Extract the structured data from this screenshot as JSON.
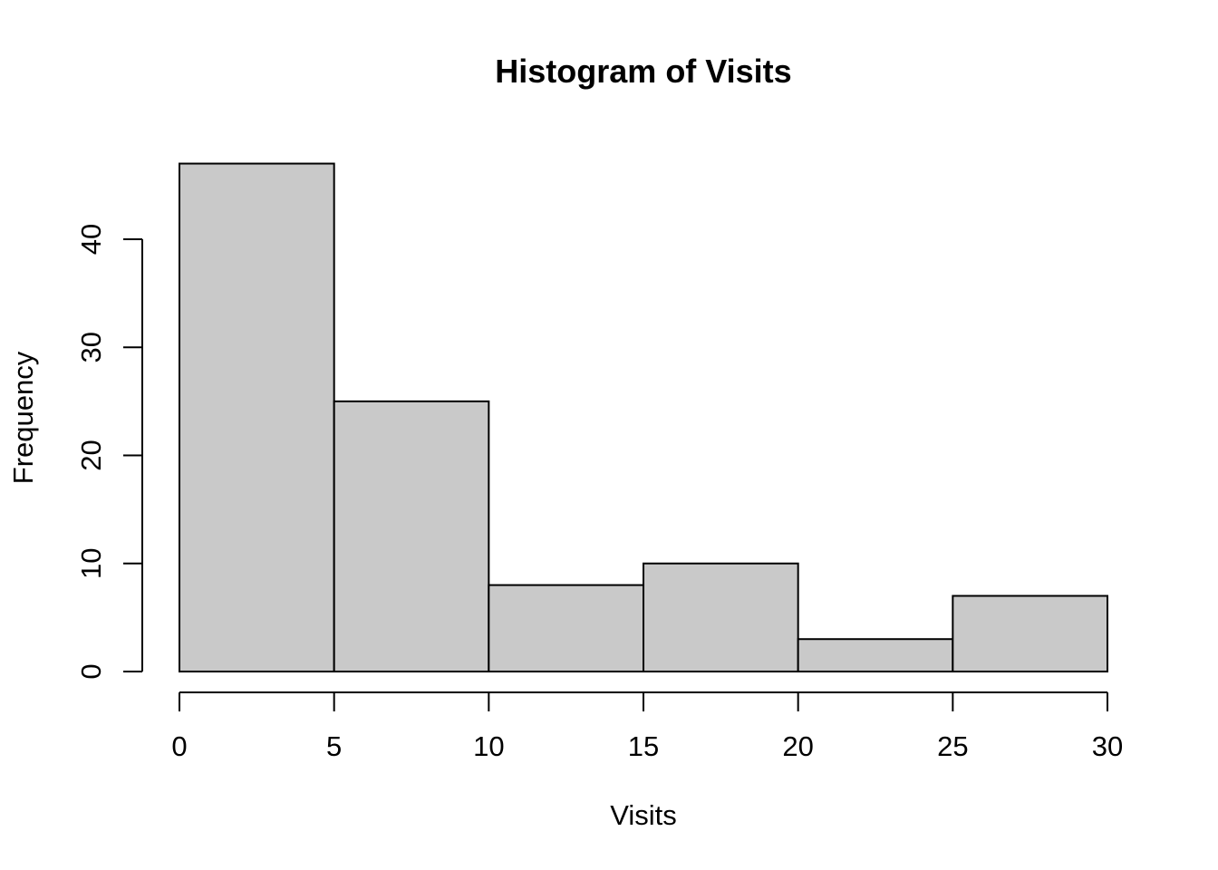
{
  "chart_data": {
    "type": "bar",
    "subtype": "histogram",
    "title": "Histogram of Visits",
    "xlabel": "Visits",
    "ylabel": "Frequency",
    "bins": [
      {
        "start": 0,
        "end": 5,
        "count": 47
      },
      {
        "start": 5,
        "end": 10,
        "count": 25
      },
      {
        "start": 10,
        "end": 15,
        "count": 8
      },
      {
        "start": 15,
        "end": 20,
        "count": 10
      },
      {
        "start": 20,
        "end": 25,
        "count": 3
      },
      {
        "start": 25,
        "end": 30,
        "count": 7
      }
    ],
    "xlim": [
      0,
      30
    ],
    "ylim": [
      0,
      47
    ],
    "x_ticks": [
      0,
      5,
      10,
      15,
      20,
      25,
      30
    ],
    "y_ticks": [
      0,
      10,
      20,
      30,
      40
    ],
    "x_tick_labels": [
      "0",
      "5",
      "10",
      "15",
      "20",
      "25",
      "30"
    ],
    "y_tick_labels": [
      "0",
      "10",
      "20",
      "30",
      "40"
    ],
    "grid": false,
    "legend": "none",
    "bar_color": "#c9c9c9",
    "bar_edge_color": "#000000"
  }
}
